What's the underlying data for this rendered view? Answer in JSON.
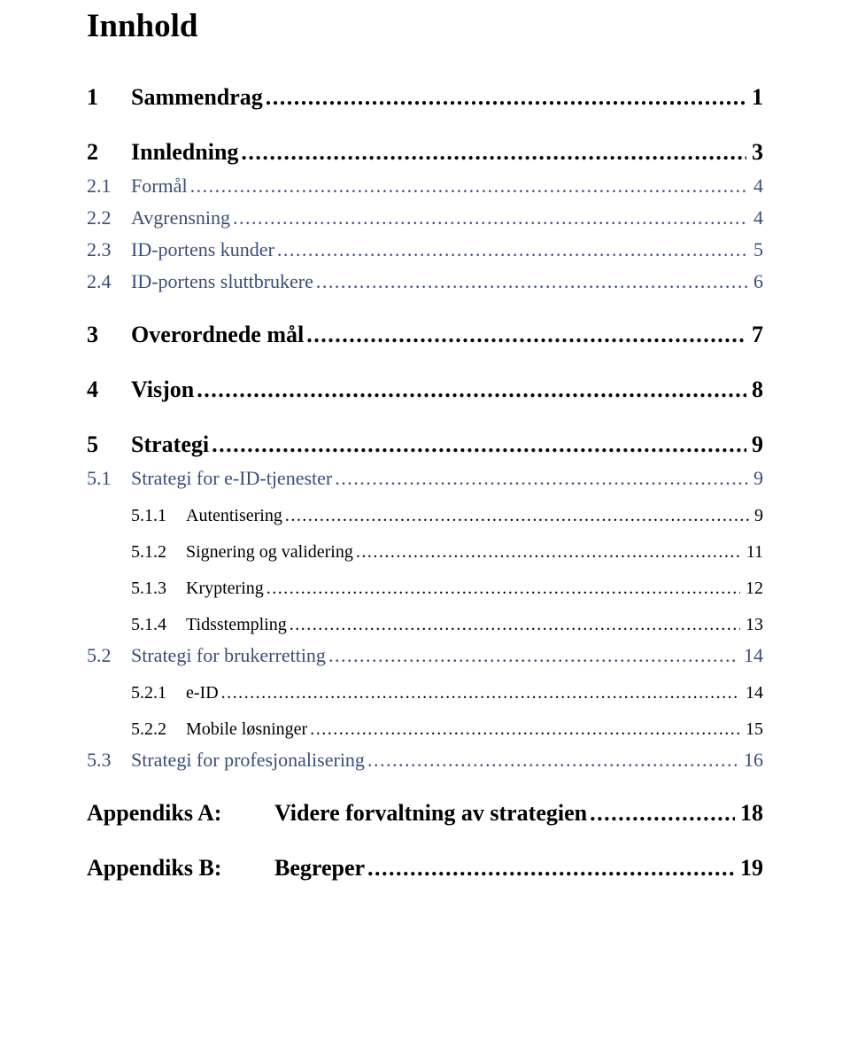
{
  "title": "Innhold",
  "colors": {
    "text": "#000000",
    "level2": "#3a4e7a",
    "background": "#ffffff"
  },
  "typography": {
    "title_fontsize": 37,
    "l1_fontsize": 26,
    "l2_fontsize": 22,
    "l3_fontsize": 20,
    "font_family": "Times New Roman"
  },
  "toc": [
    {
      "level": 1,
      "num": "1",
      "label": "Sammendrag",
      "page": "1"
    },
    {
      "level": 1,
      "num": "2",
      "label": "Innledning",
      "page": "3"
    },
    {
      "level": 2,
      "num": "2.1",
      "label": "Formål",
      "page": "4"
    },
    {
      "level": 2,
      "num": "2.2",
      "label": "Avgrensning",
      "page": "4"
    },
    {
      "level": 2,
      "num": "2.3",
      "label": "ID-portens kunder",
      "page": "5"
    },
    {
      "level": 2,
      "num": "2.4",
      "label": "ID-portens sluttbrukere",
      "page": "6"
    },
    {
      "level": 1,
      "num": "3",
      "label": "Overordnede mål",
      "page": "7"
    },
    {
      "level": 1,
      "num": "4",
      "label": "Visjon",
      "page": "8"
    },
    {
      "level": 1,
      "num": "5",
      "label": "Strategi",
      "page": "9"
    },
    {
      "level": 2,
      "num": "5.1",
      "label": "Strategi for e-ID-tjenester",
      "page": "9"
    },
    {
      "level": 3,
      "num": "5.1.1",
      "label": "Autentisering",
      "page": "9"
    },
    {
      "level": 3,
      "num": "5.1.2",
      "label": "Signering og validering",
      "page": "11"
    },
    {
      "level": 3,
      "num": "5.1.3",
      "label": "Kryptering",
      "page": "12"
    },
    {
      "level": 3,
      "num": "5.1.4",
      "label": "Tidsstempling",
      "page": "13"
    },
    {
      "level": 2,
      "num": "5.2",
      "label": "Strategi for brukerretting",
      "page": "14"
    },
    {
      "level": 3,
      "num": "5.2.1",
      "label": "e-ID",
      "page": "14"
    },
    {
      "level": 3,
      "num": "5.2.2",
      "label": "Mobile løsninger",
      "page": "15"
    },
    {
      "level": 2,
      "num": "5.3",
      "label": "Strategi for profesjonalisering",
      "page": "16"
    }
  ],
  "appendices": [
    {
      "num": "Appendiks A:",
      "label": "Videre forvaltning av strategien",
      "page": "18"
    },
    {
      "num": "Appendiks B:",
      "label": "Begreper",
      "page": "19"
    }
  ],
  "leader_char": "."
}
